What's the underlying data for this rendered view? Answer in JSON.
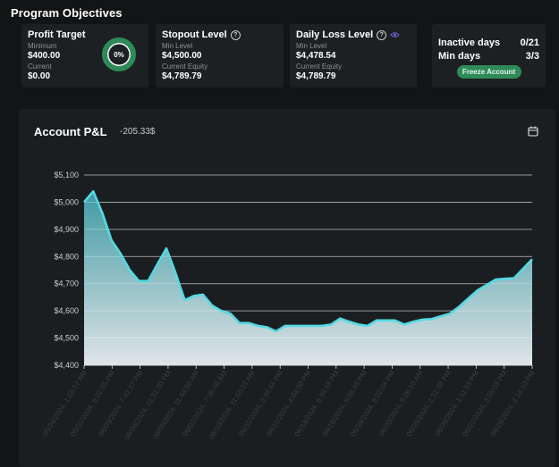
{
  "section_title": "Program Objectives",
  "profit_target": {
    "title": "Profit Target",
    "minimum_label": "Minimum",
    "minimum_value": "$400.00",
    "current_label": "Current",
    "current_value": "$0.00",
    "progress_label": "0%",
    "progress_fraction": 0
  },
  "stopout_level": {
    "title": "Stopout Level",
    "min_label": "Min Level",
    "min_value": "$4,500.00",
    "equity_label": "Current Equity",
    "equity_value": "$4,789.79"
  },
  "daily_loss": {
    "title": "Daily Loss Level",
    "min_label": "Min Level",
    "min_value": "$4,478.54",
    "equity_label": "Current Equity",
    "equity_value": "$4,789.79"
  },
  "status": {
    "inactive_label": "Inactive days",
    "inactive_value": "0/21",
    "min_days_label": "Min days",
    "min_days_value": "3/3",
    "freeze_button": "Freeze Account"
  },
  "pnl": {
    "title": "Account P&L",
    "value": "-205.33$"
  },
  "colors": {
    "accent": "#54d9e4",
    "green": "#2e8b57",
    "card_bg": "#1d2023"
  },
  "chart_data": {
    "type": "area",
    "title": "Account P&L",
    "ylim": [
      4400,
      5100
    ],
    "yticks": [
      4400,
      4500,
      4600,
      4700,
      4800,
      4900,
      5000,
      5100
    ],
    "ytick_labels": [
      "$4,400",
      "$4,500",
      "$4,600",
      "$4,700",
      "$4,800",
      "$4,900",
      "$5,000",
      "$5,100"
    ],
    "xtick_labels": [
      "05/24/2024, 1:55:17 AM",
      "05/31/2024, 6:02:55 PM",
      "06/03/2024, 7:42:17 PM",
      "06/04/2024, 12:31:30 PM",
      "06/05/2024, 11:44:56 AM",
      "06/07/2024, 7:36:46 AM",
      "06/10/2024, 11:55:31 AM",
      "06/11/2024, 3:46:44 PM",
      "06/12/2024, 4:04:30 PM",
      "06/13/2024, 6:46:18 PM",
      "06/18/2024, 5:56:45 PM",
      "06/19/2024, 8:02:04 PM",
      "06/20/2024, 9:26:10 AM",
      "06/25/2024, 2:31:38 PM",
      "06/26/2024, 1:11:15 PM",
      "06/27/2024, 3:55:03 PM",
      "06/28/2024, 2:14:10 PM"
    ],
    "grid": true,
    "values": [
      5000,
      5040,
      4960,
      4860,
      4810,
      4750,
      4710,
      4710,
      4770,
      4830,
      4740,
      4640,
      4655,
      4660,
      4620,
      4600,
      4590,
      4555,
      4555,
      4545,
      4540,
      4525,
      4545,
      4545,
      4545,
      4545,
      4545,
      4550,
      4572,
      4560,
      4550,
      4545,
      4565,
      4565,
      4565,
      4550,
      4560,
      4568,
      4570,
      4580,
      4590,
      4615,
      4645,
      4675,
      4695,
      4715,
      4718,
      4720,
      4755,
      4790
    ]
  }
}
